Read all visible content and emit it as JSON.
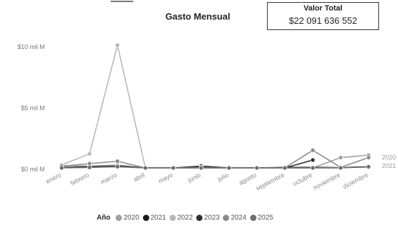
{
  "kpi": {
    "title": "Valor Total",
    "value": "$22 091 636 552"
  },
  "chart_data": {
    "type": "line",
    "title": "Gasto Mensual",
    "xlabel": "",
    "ylabel": "",
    "categories": [
      "enero",
      "febrero",
      "marzo",
      "abril",
      "mayo",
      "junio",
      "julio",
      "agosto",
      "septiembre",
      "octubre",
      "noviembre",
      "diciembre"
    ],
    "y_ticks": [
      {
        "value": 0,
        "label": "$0 mil M"
      },
      {
        "value": 5,
        "label": "$5 mil M"
      },
      {
        "value": 10,
        "label": "$10 mil M"
      }
    ],
    "ylim": [
      -0.3,
      11.5
    ],
    "grid": false,
    "legend": {
      "title": "Año",
      "placement": "bottom"
    },
    "series": [
      {
        "name": "2020",
        "color": "#a0a0a0",
        "values": [
          0.25,
          0.2,
          0.3,
          0.05,
          0.05,
          0.05,
          0.05,
          0.05,
          0.05,
          0.05,
          0.9,
          1.1
        ]
      },
      {
        "name": "2021",
        "color": "#1a1a1a",
        "values": [
          0.1,
          0.15,
          0.2,
          0.05,
          0.05,
          0.2,
          0.05,
          0.05,
          0.1,
          0.1,
          0.1,
          0.15
        ]
      },
      {
        "name": "2022",
        "color": "#b8b8b8",
        "values": [
          0.3,
          1.2,
          10.1,
          0.05,
          0.05,
          0.05,
          0.05,
          0.05,
          0.05,
          0.05,
          0.1,
          0.1
        ]
      },
      {
        "name": "2023",
        "color": "#2e2e2e",
        "values": [
          0.1,
          0.1,
          0.2,
          0.05,
          0.05,
          0.1,
          0.05,
          0.05,
          0.05,
          0.7,
          null,
          null
        ]
      },
      {
        "name": "2024",
        "color": "#8a8a8a",
        "values": [
          0.2,
          0.4,
          0.6,
          0.05,
          0.05,
          0.1,
          0.05,
          0.05,
          0.05,
          1.5,
          0.1,
          0.9
        ]
      },
      {
        "name": "2025",
        "color": "#6e6e6e",
        "values": [
          0.05,
          0.1,
          0.15,
          0.05,
          0.05,
          0.05,
          0.05,
          0.05,
          0.05,
          0.05,
          0.05,
          0.15
        ]
      }
    ],
    "end_labels": [
      "2020",
      "2021"
    ]
  }
}
